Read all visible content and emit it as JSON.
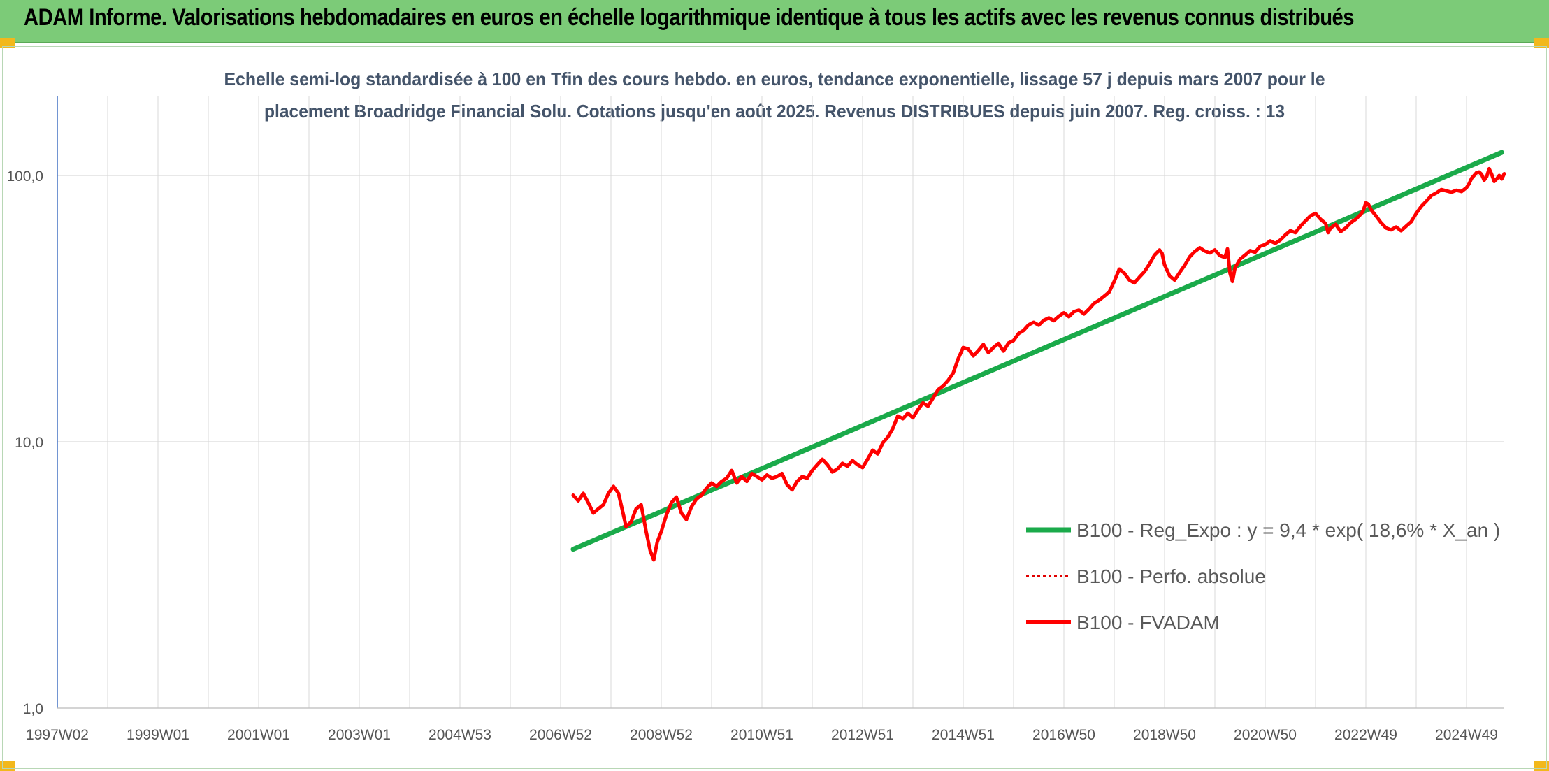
{
  "header": {
    "title": "ADAM Informe. Valorisations hebdomadaires en euros en échelle logarithmique identique à tous les actifs avec les revenus connus distribués"
  },
  "colors": {
    "header_bg": "#7ccb78",
    "trend": "#1aaa4a",
    "fvadam": "#ff0000",
    "perfo": "#e00000",
    "grid": "#d9d9d9",
    "axis_line": "#4472c4"
  },
  "chart_data": {
    "type": "line",
    "title_line1": "Echelle semi-log standardisée à 100 en Tfin des cours hebdo. en euros, tendance exponentielle, lissage 57 j depuis mars 2007 pour le",
    "title_line2": "placement Broadridge Financial Solu. Cotations jusqu'en août 2025. Revenus DISTRIBUES depuis juin 2007. Reg. croiss. : 13",
    "y_scale": "log",
    "ylim": [
      1,
      200
    ],
    "y_ticks": [
      "1,0",
      "10,0",
      "100,0"
    ],
    "y_tick_values": [
      1,
      10,
      100
    ],
    "xlim": [
      1997.0,
      2025.75
    ],
    "x_ticks": [
      "1997W02",
      "1999W01",
      "2001W01",
      "2003W01",
      "2004W53",
      "2006W52",
      "2008W52",
      "2010W51",
      "2012W51",
      "2014W51",
      "2016W50",
      "2018W50",
      "2020W50",
      "2022W49",
      "2024W49"
    ],
    "x_tick_values": [
      1997.0,
      1999.0,
      2001.0,
      2003.0,
      2005.0,
      2007.0,
      2009.0,
      2011.0,
      2013.0,
      2015.0,
      2017.0,
      2019.0,
      2021.0,
      2023.0,
      2025.0
    ],
    "grid": true,
    "legend_position": "bottom-right",
    "series": [
      {
        "name": "B100 - Reg_Expo : y = 9,4 * exp( 18,6% *  X_an )",
        "style": "solid-thick",
        "points": [
          [
            2007.25,
            3.95
          ],
          [
            2025.7,
            122.0
          ]
        ]
      },
      {
        "name": "B100 - Perfo. absolue",
        "style": "dotted",
        "points": []
      },
      {
        "name": "B100 - FVADAM",
        "style": "solid",
        "points": [
          [
            2007.25,
            6.3
          ],
          [
            2007.35,
            6.0
          ],
          [
            2007.45,
            6.4
          ],
          [
            2007.55,
            5.9
          ],
          [
            2007.65,
            5.4
          ],
          [
            2007.75,
            5.6
          ],
          [
            2007.85,
            5.8
          ],
          [
            2007.95,
            6.4
          ],
          [
            2008.05,
            6.8
          ],
          [
            2008.15,
            6.4
          ],
          [
            2008.25,
            5.3
          ],
          [
            2008.3,
            4.8
          ],
          [
            2008.4,
            5.0
          ],
          [
            2008.5,
            5.6
          ],
          [
            2008.6,
            5.8
          ],
          [
            2008.7,
            4.6
          ],
          [
            2008.78,
            3.9
          ],
          [
            2008.85,
            3.6
          ],
          [
            2008.92,
            4.2
          ],
          [
            2009.0,
            4.6
          ],
          [
            2009.1,
            5.3
          ],
          [
            2009.2,
            5.9
          ],
          [
            2009.3,
            6.2
          ],
          [
            2009.4,
            5.4
          ],
          [
            2009.5,
            5.1
          ],
          [
            2009.6,
            5.7
          ],
          [
            2009.7,
            6.1
          ],
          [
            2009.8,
            6.3
          ],
          [
            2009.9,
            6.7
          ],
          [
            2010.0,
            7.0
          ],
          [
            2010.1,
            6.8
          ],
          [
            2010.2,
            7.1
          ],
          [
            2010.3,
            7.3
          ],
          [
            2010.4,
            7.8
          ],
          [
            2010.5,
            7.0
          ],
          [
            2010.6,
            7.4
          ],
          [
            2010.7,
            7.1
          ],
          [
            2010.8,
            7.6
          ],
          [
            2010.9,
            7.4
          ],
          [
            2011.0,
            7.2
          ],
          [
            2011.1,
            7.5
          ],
          [
            2011.2,
            7.3
          ],
          [
            2011.3,
            7.4
          ],
          [
            2011.4,
            7.6
          ],
          [
            2011.5,
            6.9
          ],
          [
            2011.6,
            6.6
          ],
          [
            2011.7,
            7.1
          ],
          [
            2011.8,
            7.4
          ],
          [
            2011.9,
            7.3
          ],
          [
            2012.0,
            7.8
          ],
          [
            2012.1,
            8.2
          ],
          [
            2012.2,
            8.6
          ],
          [
            2012.3,
            8.2
          ],
          [
            2012.4,
            7.7
          ],
          [
            2012.5,
            7.9
          ],
          [
            2012.6,
            8.3
          ],
          [
            2012.7,
            8.1
          ],
          [
            2012.8,
            8.5
          ],
          [
            2012.9,
            8.2
          ],
          [
            2013.0,
            8.0
          ],
          [
            2013.1,
            8.6
          ],
          [
            2013.2,
            9.3
          ],
          [
            2013.3,
            9.0
          ],
          [
            2013.4,
            9.9
          ],
          [
            2013.5,
            10.4
          ],
          [
            2013.6,
            11.2
          ],
          [
            2013.7,
            12.5
          ],
          [
            2013.8,
            12.2
          ],
          [
            2013.9,
            12.8
          ],
          [
            2014.0,
            12.3
          ],
          [
            2014.1,
            13.2
          ],
          [
            2014.2,
            14.0
          ],
          [
            2014.3,
            13.6
          ],
          [
            2014.4,
            14.6
          ],
          [
            2014.5,
            15.7
          ],
          [
            2014.6,
            16.2
          ],
          [
            2014.7,
            17.0
          ],
          [
            2014.8,
            18.1
          ],
          [
            2014.9,
            20.5
          ],
          [
            2015.0,
            22.6
          ],
          [
            2015.1,
            22.3
          ],
          [
            2015.2,
            21.0
          ],
          [
            2015.3,
            22.0
          ],
          [
            2015.4,
            23.2
          ],
          [
            2015.5,
            21.6
          ],
          [
            2015.6,
            22.6
          ],
          [
            2015.7,
            23.4
          ],
          [
            2015.8,
            21.9
          ],
          [
            2015.9,
            23.5
          ],
          [
            2016.0,
            24.0
          ],
          [
            2016.1,
            25.5
          ],
          [
            2016.2,
            26.2
          ],
          [
            2016.3,
            27.5
          ],
          [
            2016.4,
            28.1
          ],
          [
            2016.5,
            27.4
          ],
          [
            2016.6,
            28.6
          ],
          [
            2016.7,
            29.2
          ],
          [
            2016.8,
            28.5
          ],
          [
            2016.9,
            29.6
          ],
          [
            2017.0,
            30.5
          ],
          [
            2017.1,
            29.5
          ],
          [
            2017.2,
            30.8
          ],
          [
            2017.3,
            31.2
          ],
          [
            2017.4,
            30.2
          ],
          [
            2017.5,
            31.5
          ],
          [
            2017.6,
            33.1
          ],
          [
            2017.7,
            34.0
          ],
          [
            2017.8,
            35.2
          ],
          [
            2017.9,
            36.5
          ],
          [
            2018.0,
            40.0
          ],
          [
            2018.1,
            44.5
          ],
          [
            2018.2,
            43.0
          ],
          [
            2018.3,
            40.5
          ],
          [
            2018.4,
            39.5
          ],
          [
            2018.5,
            41.5
          ],
          [
            2018.6,
            43.5
          ],
          [
            2018.7,
            46.5
          ],
          [
            2018.8,
            50.2
          ],
          [
            2018.9,
            52.5
          ],
          [
            2018.95,
            51.0
          ],
          [
            2019.0,
            46.2
          ],
          [
            2019.1,
            42.0
          ],
          [
            2019.2,
            40.5
          ],
          [
            2019.3,
            43.2
          ],
          [
            2019.4,
            46.0
          ],
          [
            2019.5,
            49.5
          ],
          [
            2019.6,
            51.8
          ],
          [
            2019.7,
            53.5
          ],
          [
            2019.8,
            52.0
          ],
          [
            2019.9,
            51.2
          ],
          [
            2020.0,
            52.5
          ],
          [
            2020.1,
            50.0
          ],
          [
            2020.2,
            49.2
          ],
          [
            2020.25,
            53.0
          ],
          [
            2020.3,
            43.0
          ],
          [
            2020.35,
            40.0
          ],
          [
            2020.4,
            45.0
          ],
          [
            2020.5,
            48.5
          ],
          [
            2020.6,
            50.2
          ],
          [
            2020.7,
            52.2
          ],
          [
            2020.8,
            51.5
          ],
          [
            2020.9,
            54.2
          ],
          [
            2021.0,
            55.0
          ],
          [
            2021.1,
            56.8
          ],
          [
            2021.2,
            55.6
          ],
          [
            2021.3,
            57.2
          ],
          [
            2021.4,
            59.8
          ],
          [
            2021.5,
            62.0
          ],
          [
            2021.6,
            61.0
          ],
          [
            2021.7,
            64.5
          ],
          [
            2021.8,
            67.5
          ],
          [
            2021.9,
            70.5
          ],
          [
            2022.0,
            72.0
          ],
          [
            2022.1,
            68.5
          ],
          [
            2022.2,
            66.0
          ],
          [
            2022.25,
            61.0
          ],
          [
            2022.3,
            63.5
          ],
          [
            2022.4,
            65.5
          ],
          [
            2022.5,
            61.5
          ],
          [
            2022.6,
            63.5
          ],
          [
            2022.7,
            66.5
          ],
          [
            2022.8,
            68.5
          ],
          [
            2022.9,
            71.5
          ],
          [
            2022.95,
            74.0
          ],
          [
            2023.0,
            79.0
          ],
          [
            2023.05,
            78.0
          ],
          [
            2023.1,
            74.5
          ],
          [
            2023.2,
            70.5
          ],
          [
            2023.3,
            66.5
          ],
          [
            2023.4,
            63.5
          ],
          [
            2023.5,
            62.5
          ],
          [
            2023.6,
            64.0
          ],
          [
            2023.7,
            62.0
          ],
          [
            2023.8,
            64.5
          ],
          [
            2023.9,
            67.0
          ],
          [
            2024.0,
            72.0
          ],
          [
            2024.1,
            76.5
          ],
          [
            2024.2,
            80.0
          ],
          [
            2024.3,
            84.0
          ],
          [
            2024.4,
            86.0
          ],
          [
            2024.5,
            88.5
          ],
          [
            2024.6,
            87.5
          ],
          [
            2024.7,
            86.5
          ],
          [
            2024.8,
            88.0
          ],
          [
            2024.9,
            87.0
          ],
          [
            2025.0,
            90.0
          ],
          [
            2025.05,
            93.0
          ],
          [
            2025.1,
            97.5
          ],
          [
            2025.2,
            102.5
          ],
          [
            2025.25,
            103.0
          ],
          [
            2025.3,
            101.0
          ],
          [
            2025.35,
            96.0
          ],
          [
            2025.4,
            99.0
          ],
          [
            2025.45,
            106.0
          ],
          [
            2025.5,
            101.0
          ],
          [
            2025.55,
            95.0
          ],
          [
            2025.6,
            97.0
          ],
          [
            2025.65,
            100.0
          ],
          [
            2025.7,
            97.0
          ],
          [
            2025.75,
            101.5
          ]
        ]
      }
    ]
  }
}
